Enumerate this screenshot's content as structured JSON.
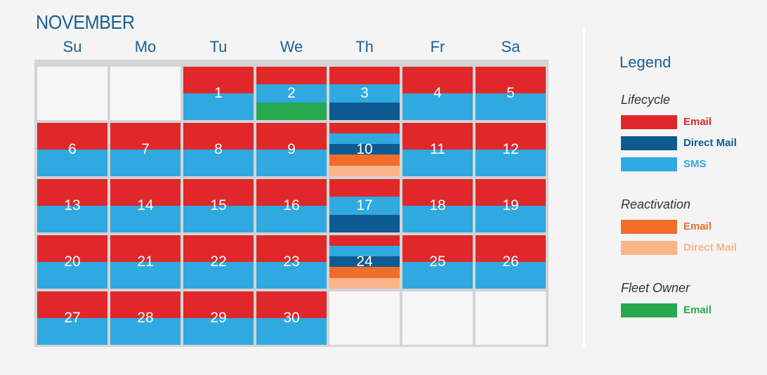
{
  "colors": {
    "lifecycle_email": "#e0282b",
    "lifecycle_direct_mail": "#0d5b90",
    "lifecycle_sms": "#2fa9df",
    "reactivation_email": "#f06d2a",
    "reactivation_direct_mail": "#f9b489",
    "fleet_email": "#27a851"
  },
  "month": "NOVEMBER",
  "weekdays": [
    "Su",
    "Mo",
    "Tu",
    "We",
    "Th",
    "Fr",
    "Sa"
  ],
  "days": [
    {
      "label": "",
      "bands": []
    },
    {
      "label": "",
      "bands": []
    },
    {
      "label": "1",
      "bands": [
        "lifecycle_email",
        "lifecycle_sms"
      ]
    },
    {
      "label": "2",
      "bands": [
        "lifecycle_email",
        "lifecycle_sms",
        "fleet_email"
      ]
    },
    {
      "label": "3",
      "bands": [
        "lifecycle_email",
        "lifecycle_sms",
        "lifecycle_direct_mail"
      ]
    },
    {
      "label": "4",
      "bands": [
        "lifecycle_email",
        "lifecycle_sms"
      ]
    },
    {
      "label": "5",
      "bands": [
        "lifecycle_email",
        "lifecycle_sms"
      ]
    },
    {
      "label": "6",
      "bands": [
        "lifecycle_email",
        "lifecycle_sms"
      ]
    },
    {
      "label": "7",
      "bands": [
        "lifecycle_email",
        "lifecycle_sms"
      ]
    },
    {
      "label": "8",
      "bands": [
        "lifecycle_email",
        "lifecycle_sms"
      ]
    },
    {
      "label": "9",
      "bands": [
        "lifecycle_email",
        "lifecycle_sms"
      ]
    },
    {
      "label": "10",
      "bands": [
        "lifecycle_email",
        "lifecycle_sms",
        "lifecycle_direct_mail",
        "reactivation_email",
        "reactivation_direct_mail"
      ]
    },
    {
      "label": "11",
      "bands": [
        "lifecycle_email",
        "lifecycle_sms"
      ]
    },
    {
      "label": "12",
      "bands": [
        "lifecycle_email",
        "lifecycle_sms"
      ]
    },
    {
      "label": "13",
      "bands": [
        "lifecycle_email",
        "lifecycle_sms"
      ]
    },
    {
      "label": "14",
      "bands": [
        "lifecycle_email",
        "lifecycle_sms"
      ]
    },
    {
      "label": "15",
      "bands": [
        "lifecycle_email",
        "lifecycle_sms"
      ]
    },
    {
      "label": "16",
      "bands": [
        "lifecycle_email",
        "lifecycle_sms"
      ]
    },
    {
      "label": "17",
      "bands": [
        "lifecycle_email",
        "lifecycle_sms",
        "lifecycle_direct_mail"
      ]
    },
    {
      "label": "18",
      "bands": [
        "lifecycle_email",
        "lifecycle_sms"
      ]
    },
    {
      "label": "19",
      "bands": [
        "lifecycle_email",
        "lifecycle_sms"
      ]
    },
    {
      "label": "20",
      "bands": [
        "lifecycle_email",
        "lifecycle_sms"
      ]
    },
    {
      "label": "21",
      "bands": [
        "lifecycle_email",
        "lifecycle_sms"
      ]
    },
    {
      "label": "22",
      "bands": [
        "lifecycle_email",
        "lifecycle_sms"
      ]
    },
    {
      "label": "23",
      "bands": [
        "lifecycle_email",
        "lifecycle_sms"
      ]
    },
    {
      "label": "24",
      "bands": [
        "lifecycle_email",
        "lifecycle_sms",
        "lifecycle_direct_mail",
        "reactivation_email",
        "reactivation_direct_mail"
      ]
    },
    {
      "label": "25",
      "bands": [
        "lifecycle_email",
        "lifecycle_sms"
      ]
    },
    {
      "label": "26",
      "bands": [
        "lifecycle_email",
        "lifecycle_sms"
      ]
    },
    {
      "label": "27",
      "bands": [
        "lifecycle_email",
        "lifecycle_sms"
      ]
    },
    {
      "label": "28",
      "bands": [
        "lifecycle_email",
        "lifecycle_sms"
      ]
    },
    {
      "label": "29",
      "bands": [
        "lifecycle_email",
        "lifecycle_sms"
      ]
    },
    {
      "label": "30",
      "bands": [
        "lifecycle_email",
        "lifecycle_sms"
      ]
    },
    {
      "label": "",
      "bands": []
    },
    {
      "label": "",
      "bands": []
    },
    {
      "label": "",
      "bands": []
    }
  ],
  "legend": {
    "title": "Legend",
    "groups": [
      {
        "name": "Lifecycle",
        "items": [
          {
            "label": "Email",
            "color_key": "lifecycle_email"
          },
          {
            "label": "Direct Mail",
            "color_key": "lifecycle_direct_mail"
          },
          {
            "label": "SMS",
            "color_key": "lifecycle_sms"
          }
        ]
      },
      {
        "name": "Reactivation",
        "items": [
          {
            "label": "Email",
            "color_key": "reactivation_email"
          },
          {
            "label": "Direct Mail",
            "color_key": "reactivation_direct_mail"
          }
        ]
      },
      {
        "name": "Fleet Owner",
        "items": [
          {
            "label": "Email",
            "color_key": "fleet_email"
          }
        ]
      }
    ]
  }
}
